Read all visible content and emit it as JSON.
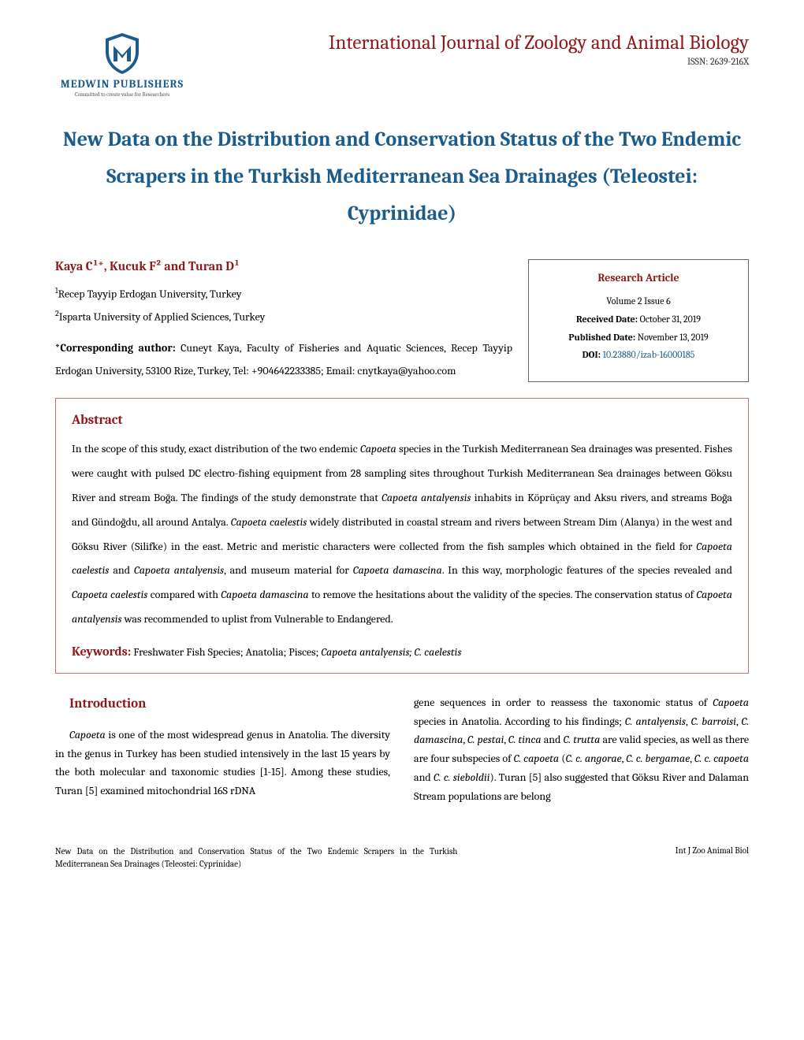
{
  "publisher": {
    "name": "MEDWIN PUBLISHERS",
    "tagline": "Committed to create value for Researchers",
    "logo_colors": {
      "shield": "#1b5c8c",
      "inner": "#ffffff"
    }
  },
  "journal": {
    "title": "International Journal of Zoology and Animal Biology",
    "issn": "ISSN: 2639-216X",
    "title_color": "#8b1a1a"
  },
  "article": {
    "title": "New Data on the Distribution and Conservation Status of the Two Endemic Scrapers in the Turkish Mediterranean Sea Drainages (Teleostei: Cyprinidae)",
    "title_color": "#1b5c8c"
  },
  "authors": {
    "line": "Kaya C¹*, Kucuk F² and Turan D¹",
    "affiliations": [
      {
        "num": "1",
        "text": "Recep Tayyip Erdogan University, Turkey"
      },
      {
        "num": "2",
        "text": "Isparta University of Applied Sciences, Turkey"
      }
    ],
    "corresponding_label": "*Corresponding author:",
    "corresponding_text": " Cuneyt Kaya, Faculty of Fisheries and Aquatic Sciences, Recep Tayyip Erdogan University, 53100 Rize, Turkey, Tel: +904642233385; Email: cnytkaya@yahoo.com"
  },
  "info_box": {
    "type": "Research Article",
    "volume": "Volume 2 Issue 6",
    "received_label": "Received Date:",
    "received_date": " October 31, 2019",
    "published_label": "Published Date:",
    "published_date": " November 13, 2019",
    "doi_label": "DOI:",
    "doi": " 10.23880/izab-16000185"
  },
  "abstract": {
    "heading": "Abstract",
    "text_parts": [
      {
        "t": "In the scope of this study, exact distribution of the two endemic "
      },
      {
        "t": "Capoeta",
        "i": true
      },
      {
        "t": " species in the Turkish Mediterranean Sea drainages was presented. Fishes were caught with pulsed DC electro-fishing equipment from 28 sampling sites throughout Turkish Mediterranean Sea drainages between Göksu River and stream Boğa. The findings of the study demonstrate that "
      },
      {
        "t": "Capoeta antalyensis",
        "i": true
      },
      {
        "t": " inhabits in Köprüçay and Aksu rivers, and streams Boğa and Gündoğdu, all around Antalya. "
      },
      {
        "t": "Capoeta caelestis",
        "i": true
      },
      {
        "t": " widely distributed in coastal stream and rivers between Stream Dim (Alanya) in the west and Göksu River (Silifke) in the east. Metric and meristic characters were collected from the fish samples which obtained in the field for "
      },
      {
        "t": "Capoeta caelestis",
        "i": true
      },
      {
        "t": " and "
      },
      {
        "t": "Capoeta antalyensis",
        "i": true
      },
      {
        "t": ", and museum material for "
      },
      {
        "t": "Capoeta damascina",
        "i": true
      },
      {
        "t": ". In this way, morphologic features of the species revealed and "
      },
      {
        "t": "Capoeta caelestis",
        "i": true
      },
      {
        "t": " compared with "
      },
      {
        "t": "Capoeta damascina",
        "i": true
      },
      {
        "t": " to remove the hesitations about the validity of the species. The conservation status of "
      },
      {
        "t": "Capoeta antalyensis",
        "i": true
      },
      {
        "t": " was recommended to uplist from Vulnerable to Endangered."
      }
    ],
    "keywords_label": "Keywords:",
    "keywords_parts": [
      {
        "t": " Freshwater Fish Species; Anatolia; Pisces; "
      },
      {
        "t": "Capoeta antalyensis; C. caelestis",
        "i": true
      }
    ]
  },
  "introduction": {
    "heading": "Introduction",
    "col1_parts": [
      {
        "t": "Capoeta",
        "i": true
      },
      {
        "t": " is one of the most widespread genus in Anatolia. The diversity in the genus in Turkey has been studied intensively in the last 15 years by the both molecular and taxonomic studies [1-15]. Among these studies, Turan [5] examined mitochondrial 16S rDNA"
      }
    ],
    "col2_parts": [
      {
        "t": "gene sequences in order to reassess the taxonomic status of "
      },
      {
        "t": "Capoeta",
        "i": true
      },
      {
        "t": " species in Anatolia. According to his findings; "
      },
      {
        "t": "C. antalyensis",
        "i": true
      },
      {
        "t": ", "
      },
      {
        "t": "C. barroisi",
        "i": true
      },
      {
        "t": ", "
      },
      {
        "t": "C. damascina",
        "i": true
      },
      {
        "t": ", "
      },
      {
        "t": "C. pestai",
        "i": true
      },
      {
        "t": ", "
      },
      {
        "t": "C. tinca",
        "i": true
      },
      {
        "t": " and "
      },
      {
        "t": "C. trutta",
        "i": true
      },
      {
        "t": " are valid species, as well as there are four subspecies of "
      },
      {
        "t": "C. capoeta",
        "i": true
      },
      {
        "t": " ("
      },
      {
        "t": "C. c. angorae",
        "i": true
      },
      {
        "t": ", "
      },
      {
        "t": "C. c. bergamae",
        "i": true
      },
      {
        "t": ", "
      },
      {
        "t": "C. c. capoeta",
        "i": true
      },
      {
        "t": " and "
      },
      {
        "t": "C. c. sieboldii",
        "i": true
      },
      {
        "t": "). Turan [5] also suggested that Göksu River and Dalaman Stream populations are belong"
      }
    ]
  },
  "footer": {
    "left": "New Data on the Distribution and Conservation Status of the Two Endemic Scrapers in the Turkish Mediterranean Sea Drainages (Teleostei: Cyprinidae)",
    "right": "Int J Zoo Animal Biol"
  },
  "colors": {
    "heading_red": "#8b1a1a",
    "link_blue": "#1b5c8c",
    "text": "#000000",
    "border_abstract": "#c77777",
    "border_infobox": "#666666"
  }
}
